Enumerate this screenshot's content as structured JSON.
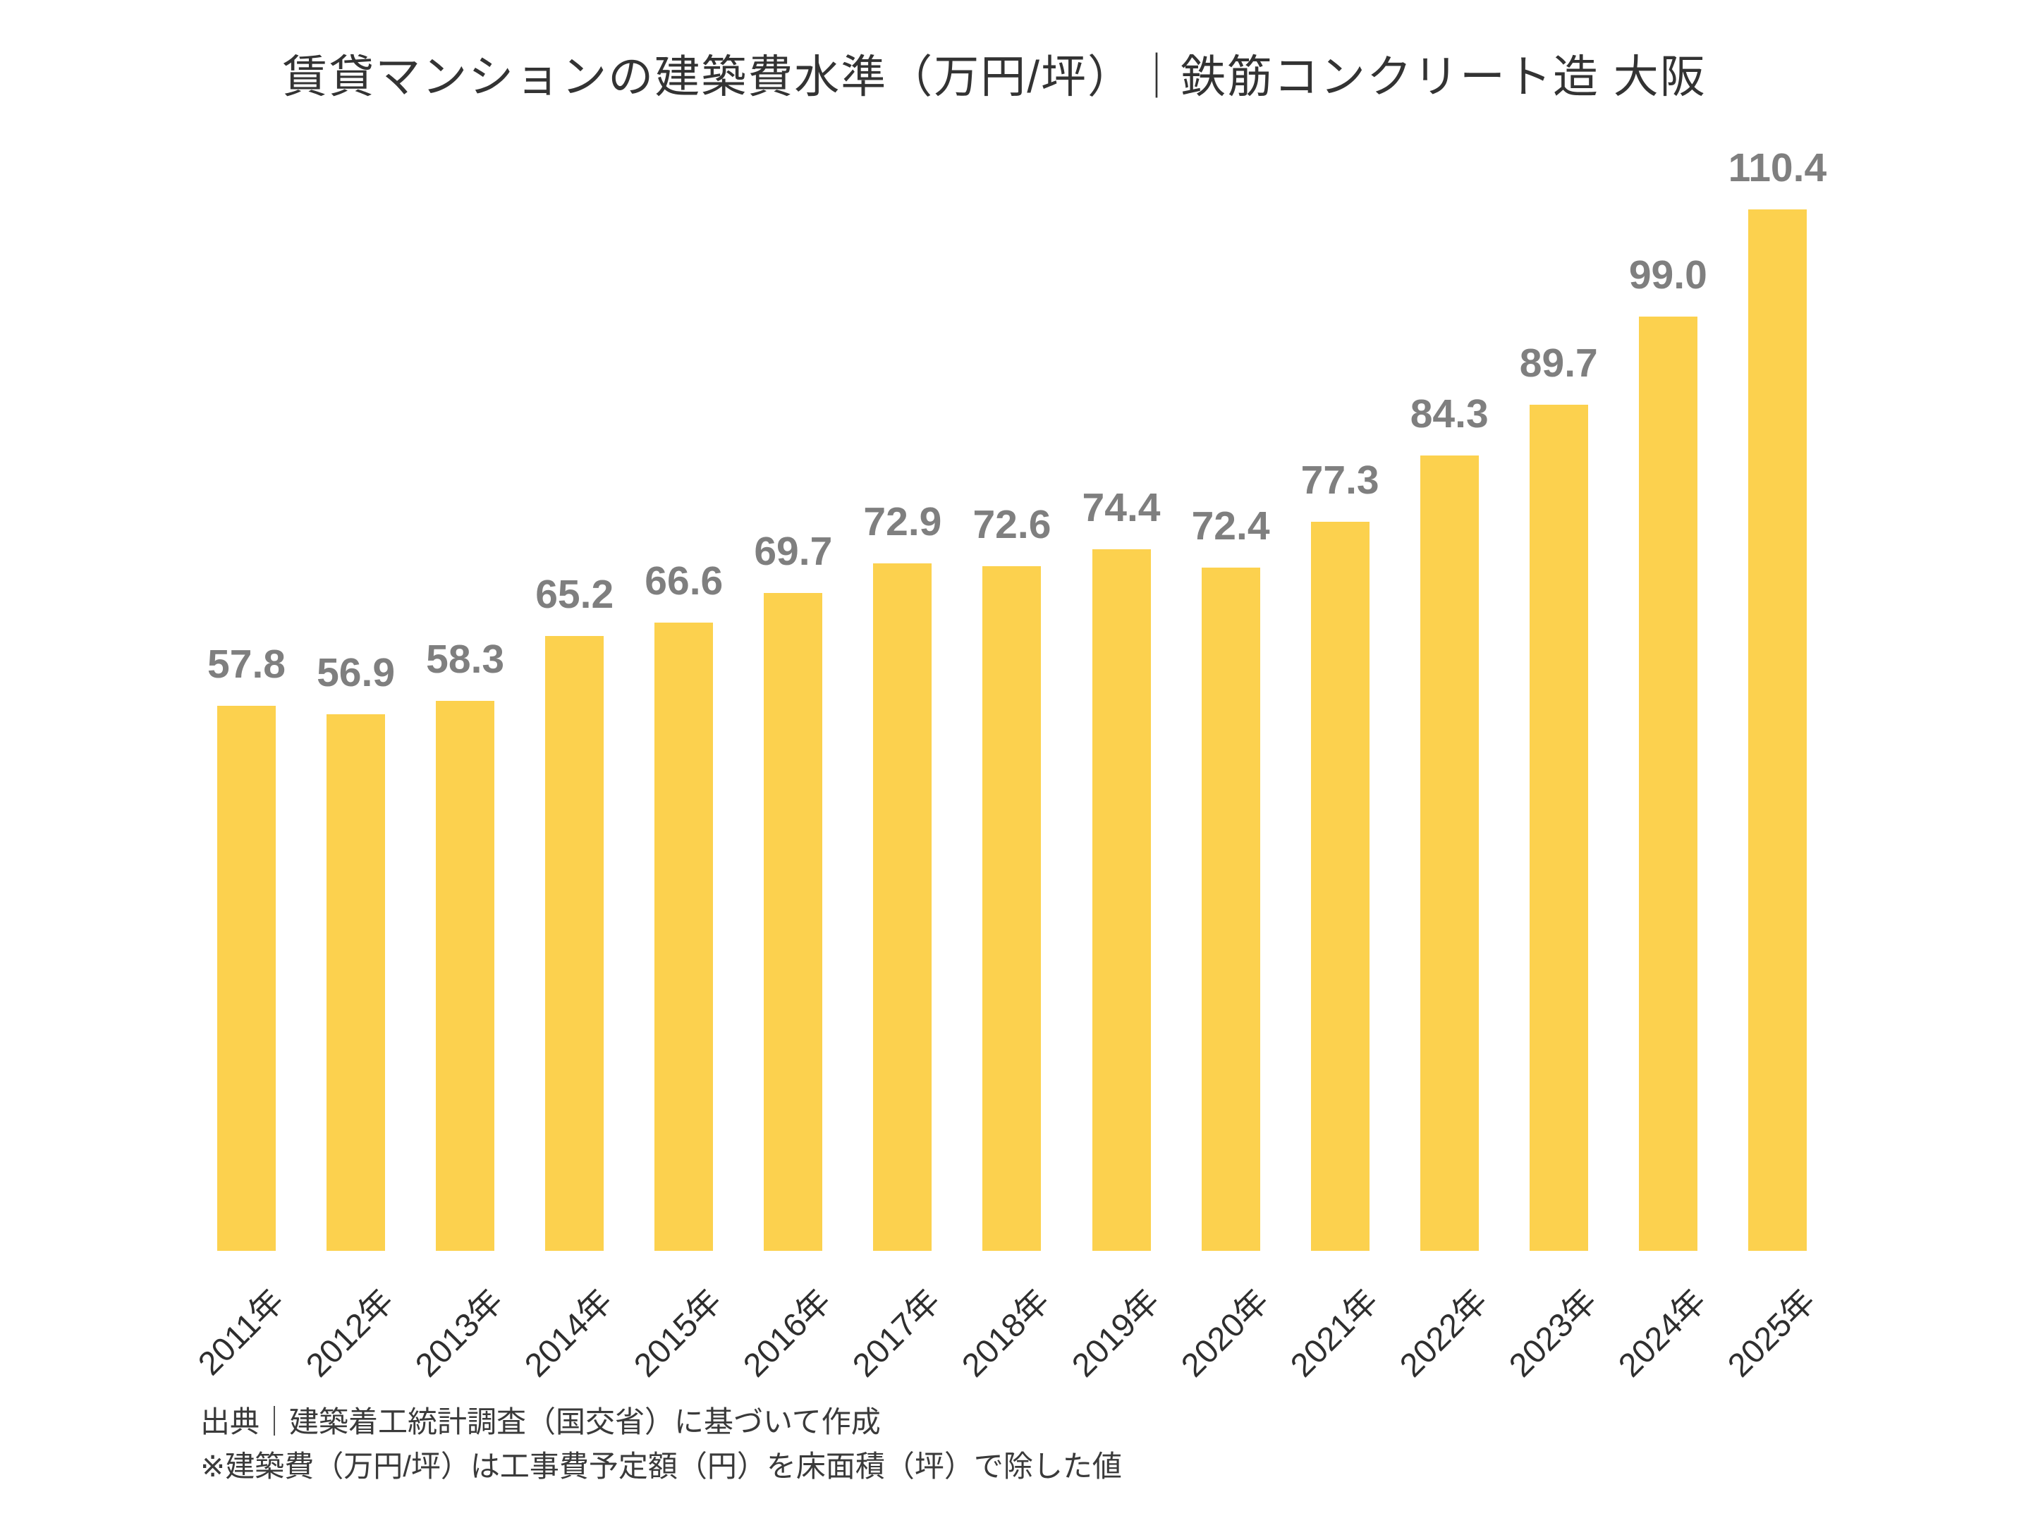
{
  "chart_data": {
    "type": "bar",
    "title": "賃貸マンションの建築費水準（万円/坪）｜鉄筋コンクリート造 大阪",
    "categories": [
      "2011年",
      "2012年",
      "2013年",
      "2014年",
      "2015年",
      "2016年",
      "2017年",
      "2018年",
      "2019年",
      "2020年",
      "2021年",
      "2022年",
      "2023年",
      "2024年",
      "2025年"
    ],
    "values": [
      57.8,
      56.9,
      58.3,
      65.2,
      66.6,
      69.7,
      72.9,
      72.6,
      74.4,
      72.4,
      77.3,
      84.3,
      89.7,
      99.0,
      110.4
    ],
    "value_label_decimals": 1,
    "xlabel": "",
    "ylabel": "",
    "ylim": [
      0,
      110.4
    ],
    "grid": false,
    "legend": "none",
    "bar_color": "#FCD14E",
    "value_label_color": "#7F7F7F",
    "axis_label_color": "#2E2E2E",
    "title_color": "#333333"
  },
  "notes": {
    "source": "出典｜建築着工統計調査（国交省）に基づいて作成",
    "definition": "※建築費（万円/坪）は工事費予定額（円）を床面積（坪）で除した値"
  }
}
